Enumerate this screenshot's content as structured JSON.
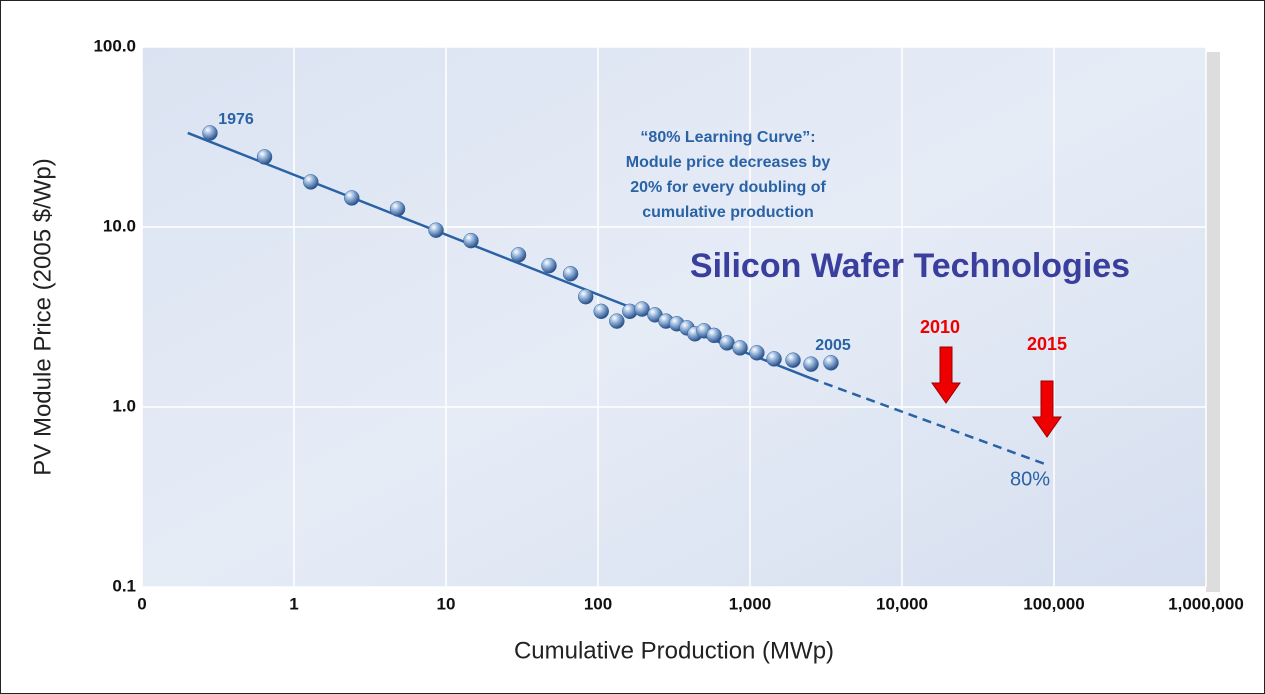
{
  "chart_data": {
    "type": "scatter",
    "title": "Silicon Wafer Technologies",
    "x_label": "Cumulative Production (MWp)",
    "y_label": "PV Module Price (2005 $/Wp)",
    "log_x": true,
    "log_y": true,
    "grid": true,
    "color": "#2a62a6",
    "xlim": [
      0.1,
      1000000
    ],
    "ylim": [
      0.1,
      100
    ],
    "xticks": [
      {
        "value": 0.1,
        "label": "0"
      },
      1,
      10,
      100,
      {
        "value": 1000,
        "label": "1,000"
      },
      {
        "value": 10000,
        "label": "10,000"
      },
      {
        "value": 100000,
        "label": "100,000"
      },
      {
        "value": 1000000,
        "label": "1,000,000"
      }
    ],
    "yticks": [
      0.1,
      {
        "value": 1,
        "label": "1.0"
      },
      {
        "value": 10,
        "label": "10.0"
      },
      {
        "value": 100,
        "label": "100.0"
      }
    ],
    "x": [
      0.28,
      0.64,
      1.29,
      2.4,
      4.8,
      8.6,
      14.6,
      30,
      47.6,
      66,
      83,
      105,
      133,
      162,
      195,
      237,
      280,
      330,
      385,
      434,
      498,
      580,
      706,
      860,
      1110,
      1440,
      1920,
      2520,
      3410
    ],
    "values": [
      33.3,
      24.5,
      17.8,
      14.5,
      12.6,
      9.6,
      8.4,
      7.0,
      6.1,
      5.5,
      4.1,
      3.4,
      3.0,
      3.4,
      3.5,
      3.25,
      3.0,
      2.9,
      2.75,
      2.55,
      2.65,
      2.5,
      2.27,
      2.13,
      2.0,
      1.85,
      1.82,
      1.73,
      1.76
    ],
    "fit_line": {
      "x": [
        0.2,
        2480
      ],
      "values": [
        33.3,
        1.45
      ],
      "color": "#2a62a6"
    },
    "projection": {
      "x": [
        2480,
        88500
      ],
      "values": [
        1.45,
        0.48
      ],
      "color": "#2a62a6"
    },
    "label_start": "1976",
    "label_end": "2005",
    "learning_curve_note": [
      "“80% Learning Curve”:",
      "Module price decreases by",
      "20% for every doubling of",
      "cumulative production"
    ],
    "marker_2010": "2010",
    "marker_2015": "2015",
    "rate_label": "80%"
  }
}
